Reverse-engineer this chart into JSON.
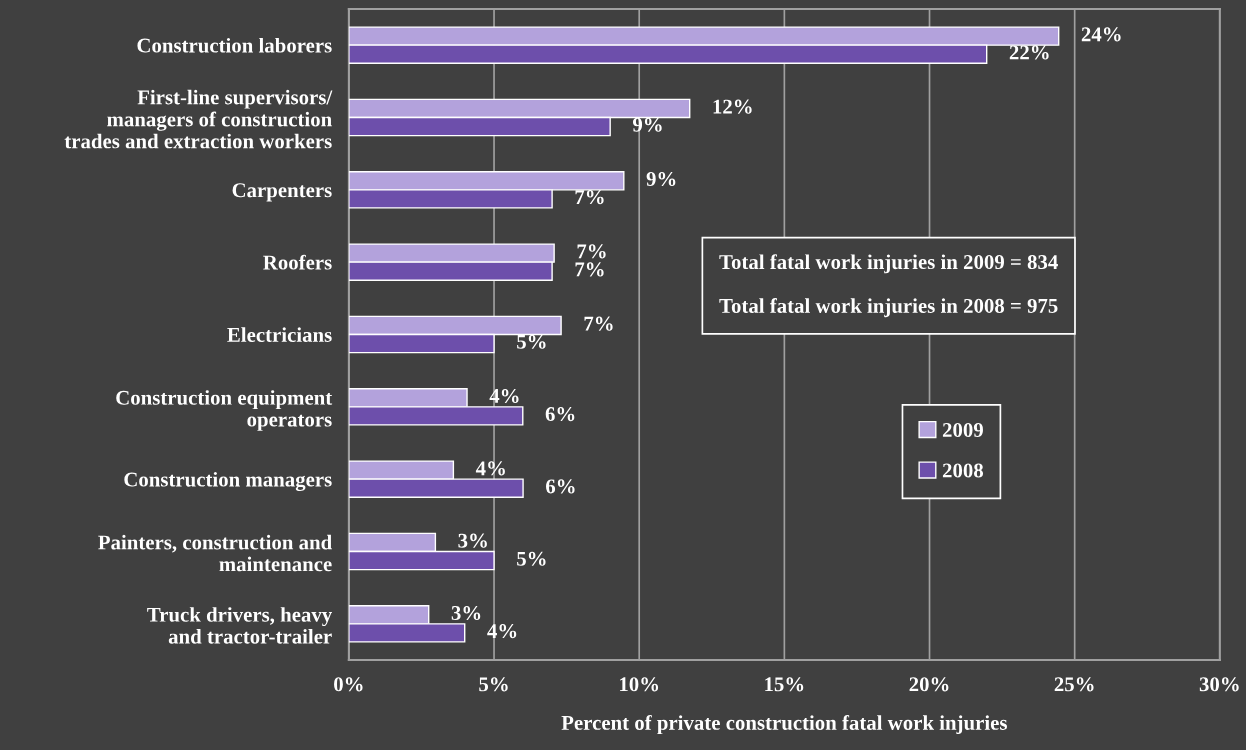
{
  "chart_data": {
    "type": "bar",
    "orientation": "horizontal",
    "categories": [
      "Construction laborers",
      "First-line supervisors/\nmanagers of construction\ntrades and extraction workers",
      "Carpenters",
      "Roofers",
      "Electricians",
      "Construction equipment\noperators",
      "Construction managers",
      "Painters, construction and\nmaintenance",
      "Truck drivers, heavy\nand tractor-trailer"
    ],
    "series": [
      {
        "name": "2009",
        "color": "#b3a2dc",
        "values": [
          24.45,
          11.74,
          9.47,
          7.07,
          7.31,
          4.07,
          3.6,
          2.98,
          2.75
        ],
        "value_labels": [
          "24%",
          "12%",
          "9%",
          "7%",
          "7%",
          "4%",
          "4%",
          "3%",
          "3%"
        ]
      },
      {
        "name": "2008",
        "color": "#6d4fab",
        "values": [
          21.97,
          9.0,
          7.0,
          7.0,
          5.0,
          5.99,
          6.0,
          5.0,
          3.99
        ],
        "value_labels": [
          "22%",
          "9%",
          "7%",
          "7%",
          "5%",
          "6%",
          "6%",
          "5%",
          "4%"
        ]
      }
    ],
    "xlabel": "Percent of private construction fatal work injuries",
    "xlim": [
      0,
      30
    ],
    "xticks": [
      {
        "value": 0,
        "label": "0%"
      },
      {
        "value": 5,
        "label": "5%"
      },
      {
        "value": 10,
        "label": "10%"
      },
      {
        "value": 15,
        "label": "15%"
      },
      {
        "value": 20,
        "label": "20%"
      },
      {
        "value": 25,
        "label": "25%"
      },
      {
        "value": 30,
        "label": "30%"
      }
    ],
    "annotations": [
      "Total fatal work injuries in 2009 = 834\n\nTotal fatal work injuries in 2008 = 975"
    ],
    "grid": "x",
    "legend": "right"
  }
}
